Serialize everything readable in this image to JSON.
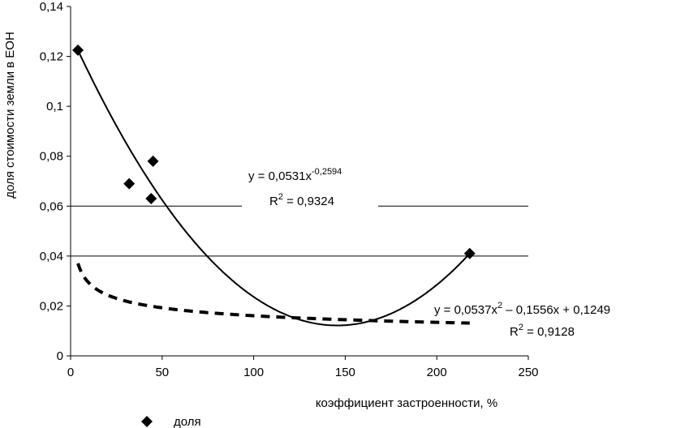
{
  "chart_data": {
    "type": "scatter",
    "xlabel": "коэффициент застроенности, %",
    "ylabel": "доля стоимости земли в ЕОН",
    "xlim": [
      0,
      250
    ],
    "ylim": [
      0,
      0.14
    ],
    "x_ticks": [
      0,
      50,
      100,
      150,
      200,
      250
    ],
    "x_tick_labels": [
      "0",
      "50",
      "100",
      "150",
      "200",
      "250"
    ],
    "y_ticks": [
      0,
      0.02,
      0.04,
      0.06,
      0.08,
      0.1,
      0.12,
      0.14
    ],
    "y_tick_labels": [
      "0",
      "0,02",
      "0,04",
      "0,06",
      "0,08",
      "0,1",
      "0,12",
      "0,14"
    ],
    "grid": "horizontal at 0,04 and 0,06",
    "legend_position": "bottom-left",
    "series": [
      {
        "name": "доля",
        "marker": "diamond",
        "color": "#000000",
        "points": [
          {
            "x": 4,
            "y": 0.1225
          },
          {
            "x": 32,
            "y": 0.069
          },
          {
            "x": 44,
            "y": 0.063
          },
          {
            "x": 45,
            "y": 0.078
          },
          {
            "x": 218,
            "y": 0.041
          }
        ]
      }
    ],
    "trendlines": [
      {
        "type": "power",
        "style": "dashed",
        "a": 0.0531,
        "b": -0.2594,
        "equation": {
          "pre": "y = 0,0531x",
          "sup": "-0,2594"
        },
        "r2": {
          "pre": "R",
          "sup": "2",
          "post": " = 0,9324"
        }
      },
      {
        "type": "polynomial",
        "style": "solid",
        "fit_points": [
          [
            4,
            0.1225
          ],
          [
            144,
            0.0122
          ],
          [
            218,
            0.041
          ]
        ],
        "equation": {
          "pre": "y = 0,0537x",
          "sup": "2",
          "post": " – 0,1556x + 0,1249"
        },
        "r2": {
          "pre": "R",
          "sup": "2",
          "post": " = 0,9128"
        }
      }
    ]
  }
}
